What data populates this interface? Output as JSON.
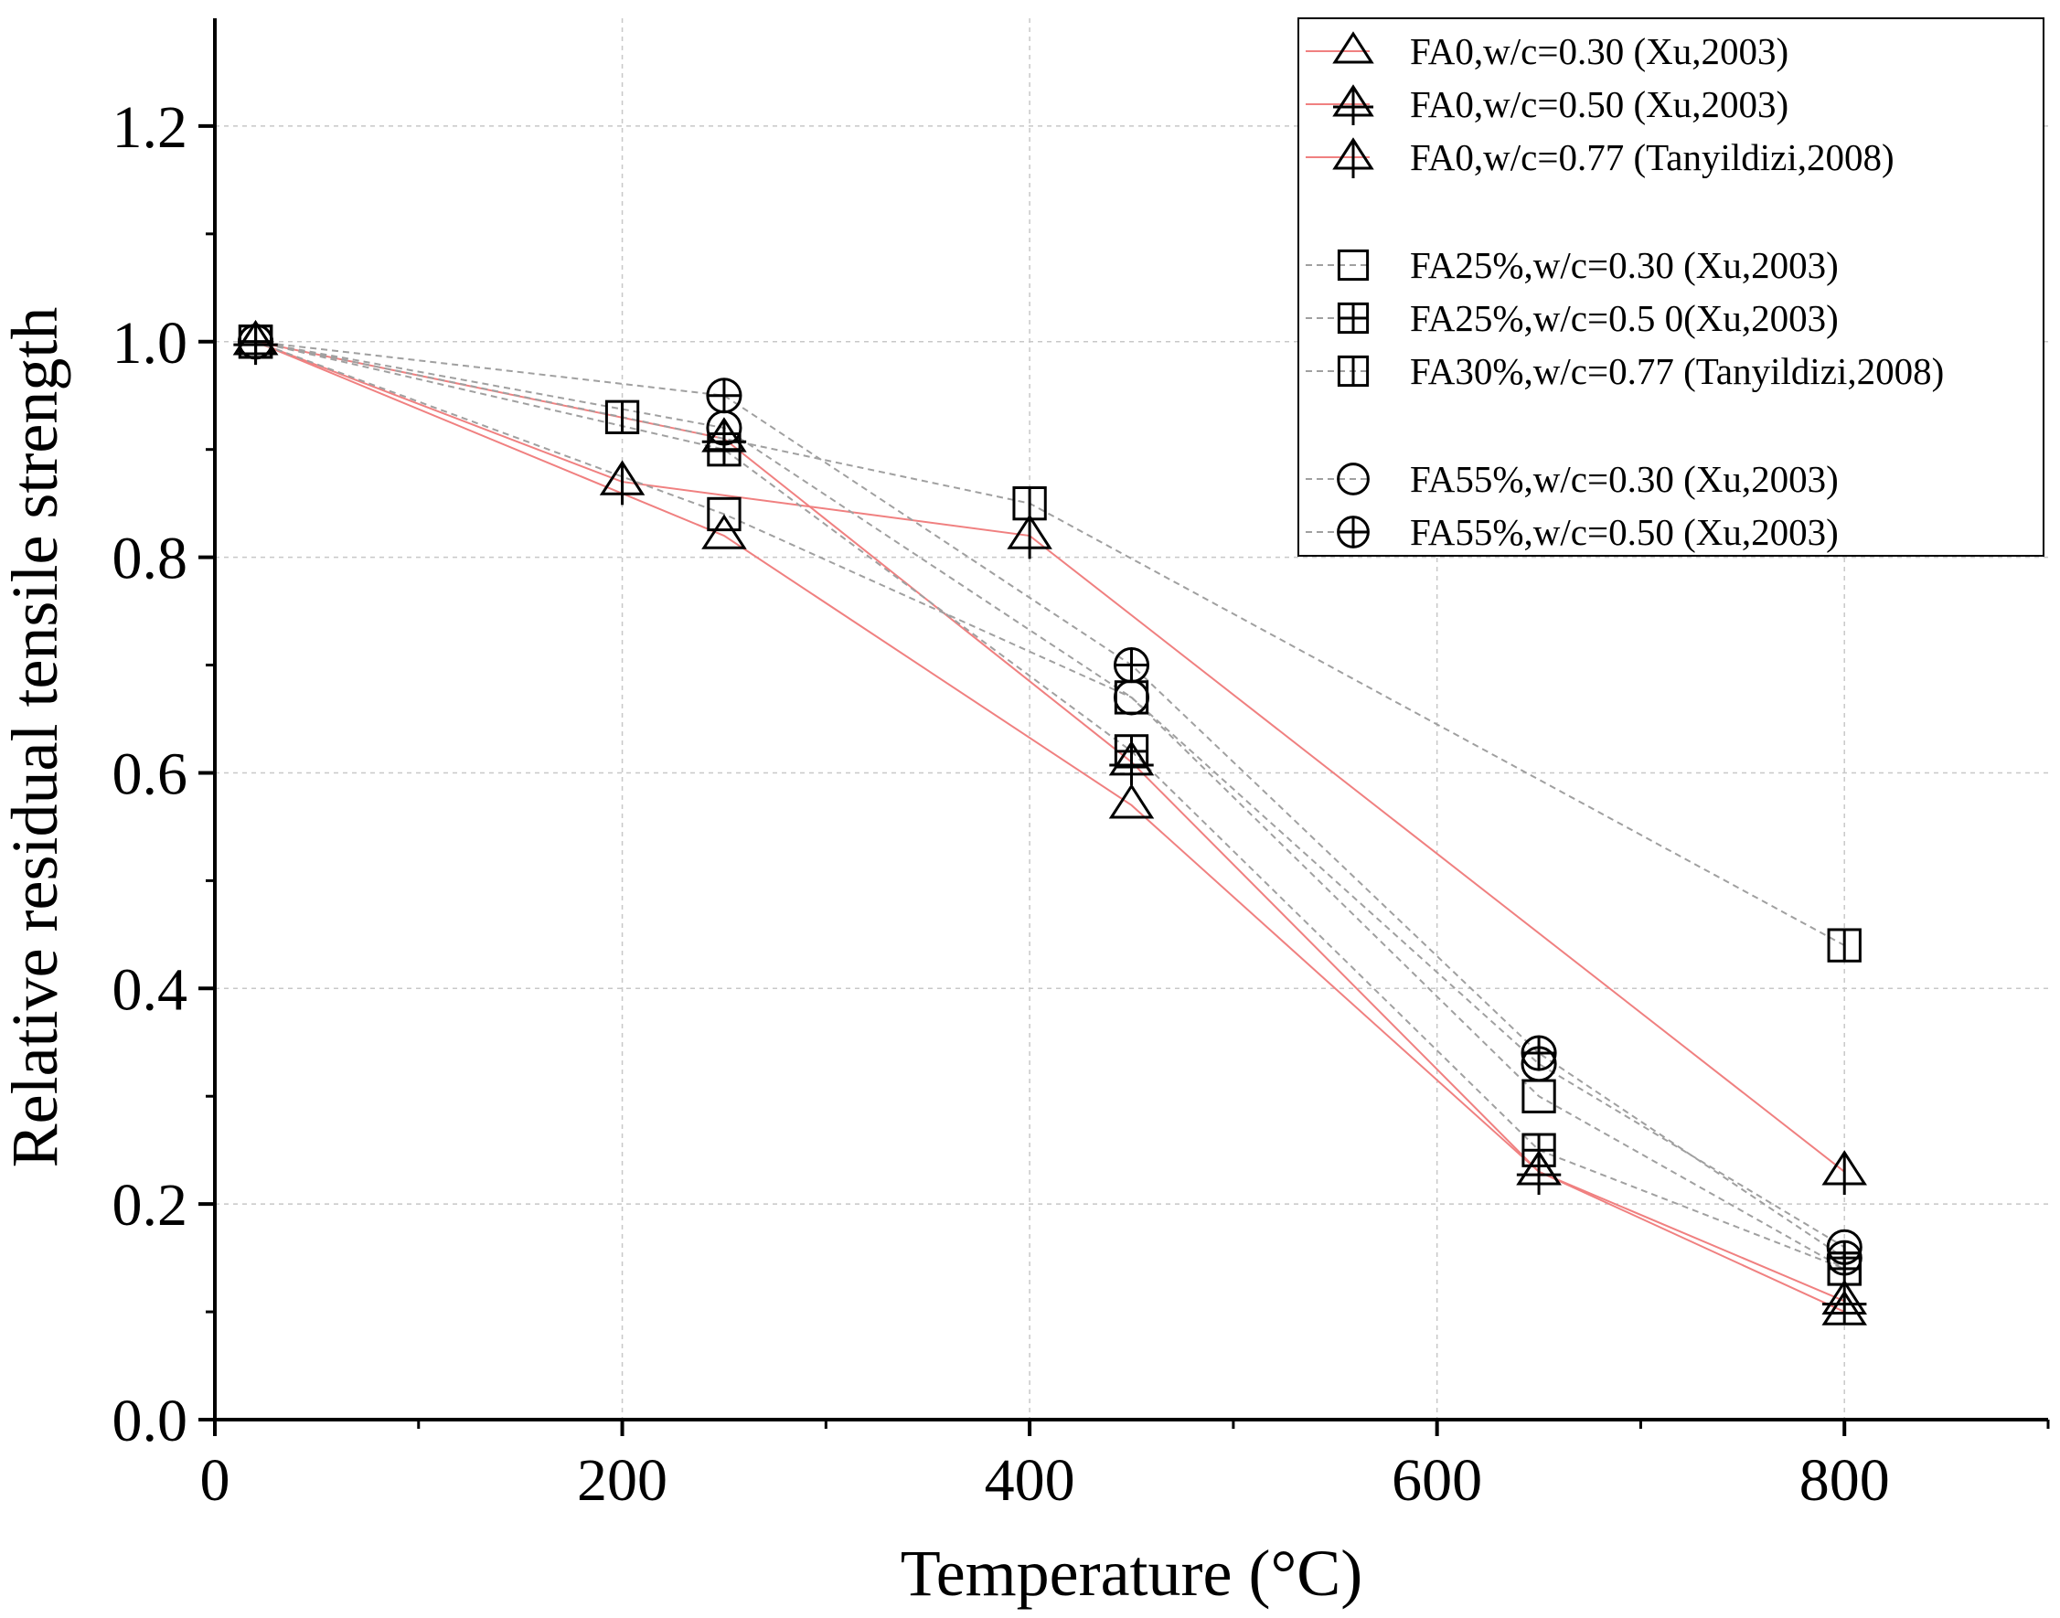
{
  "chart_data": {
    "type": "scatter",
    "title": "",
    "xlabel": "Temperature (°C)",
    "ylabel": "Relative residual tensile strength",
    "xlim": [
      0,
      900
    ],
    "ylim": [
      0,
      1.3
    ],
    "xticks": [
      0,
      200,
      400,
      600,
      800
    ],
    "xtick_labels": [
      "0",
      "200",
      "400",
      "600",
      "800"
    ],
    "xminor": [
      100,
      300,
      500,
      700,
      900
    ],
    "yticks": [
      0,
      0.2,
      0.4,
      0.6,
      0.8,
      1.0,
      1.2
    ],
    "ytick_labels": [
      "0.0",
      "0.2",
      "0.4",
      "0.6",
      "0.8",
      "1.0",
      "1.2"
    ],
    "yminor": [
      0.1,
      0.3,
      0.5,
      0.7,
      0.9,
      1.1
    ],
    "grid": true,
    "legend_position": "top-right",
    "line_colors": {
      "fa0": "#f08080",
      "fa": "#a0a0a0"
    },
    "series": [
      {
        "name": "FA0,w/c=0.30 (Xu,2003)",
        "marker": "triangle",
        "line": "solid",
        "color": "#f08080",
        "x": [
          20,
          250,
          450,
          650,
          800
        ],
        "y": [
          1.0,
          0.82,
          0.57,
          0.23,
          0.1
        ]
      },
      {
        "name": "FA0,w/c=0.50 (Xu,2003)",
        "marker": "triangle-cross",
        "line": "solid",
        "color": "#f08080",
        "x": [
          20,
          250,
          450,
          650,
          800
        ],
        "y": [
          1.0,
          0.91,
          0.61,
          0.23,
          0.11
        ]
      },
      {
        "name": "FA0,w/c=0.77 (Tanyildizi,2008)",
        "marker": "triangle-vline",
        "line": "solid",
        "color": "#f08080",
        "x": [
          20,
          200,
          400,
          800
        ],
        "y": [
          1.0,
          0.87,
          0.82,
          0.23
        ]
      },
      {
        "name": "FA25%,w/c=0.30 (Xu,2003)",
        "marker": "square",
        "line": "dashed",
        "color": "#a0a0a0",
        "x": [
          20,
          250,
          450,
          650,
          800
        ],
        "y": [
          1.0,
          0.84,
          0.67,
          0.3,
          0.14
        ]
      },
      {
        "name": "FA25%,w/c=0.5 0(Xu,2003)",
        "marker": "square-cross",
        "line": "dashed",
        "color": "#a0a0a0",
        "x": [
          20,
          250,
          450,
          650,
          800
        ],
        "y": [
          1.0,
          0.9,
          0.62,
          0.25,
          0.14
        ]
      },
      {
        "name": "FA30%,w/c=0.77 (Tanyildizi,2008)",
        "marker": "square-vline",
        "line": "dashed",
        "color": "#a0a0a0",
        "x": [
          20,
          200,
          400,
          800
        ],
        "y": [
          1.0,
          0.93,
          0.85,
          0.44
        ]
      },
      {
        "name": "FA55%,w/c=0.30 (Xu,2003)",
        "marker": "circle",
        "line": "dashed",
        "color": "#a0a0a0",
        "x": [
          20,
          250,
          450,
          650,
          800
        ],
        "y": [
          1.0,
          0.92,
          0.67,
          0.33,
          0.16
        ]
      },
      {
        "name": "FA55%,w/c=0.50 (Xu,2003)",
        "marker": "circle-cross",
        "line": "dashed",
        "color": "#a0a0a0",
        "x": [
          20,
          250,
          450,
          650,
          800
        ],
        "y": [
          1.0,
          0.95,
          0.7,
          0.34,
          0.15
        ]
      }
    ],
    "legend_groups": [
      [
        0,
        1,
        2
      ],
      [
        3,
        4,
        5
      ],
      [
        6,
        7
      ]
    ]
  }
}
